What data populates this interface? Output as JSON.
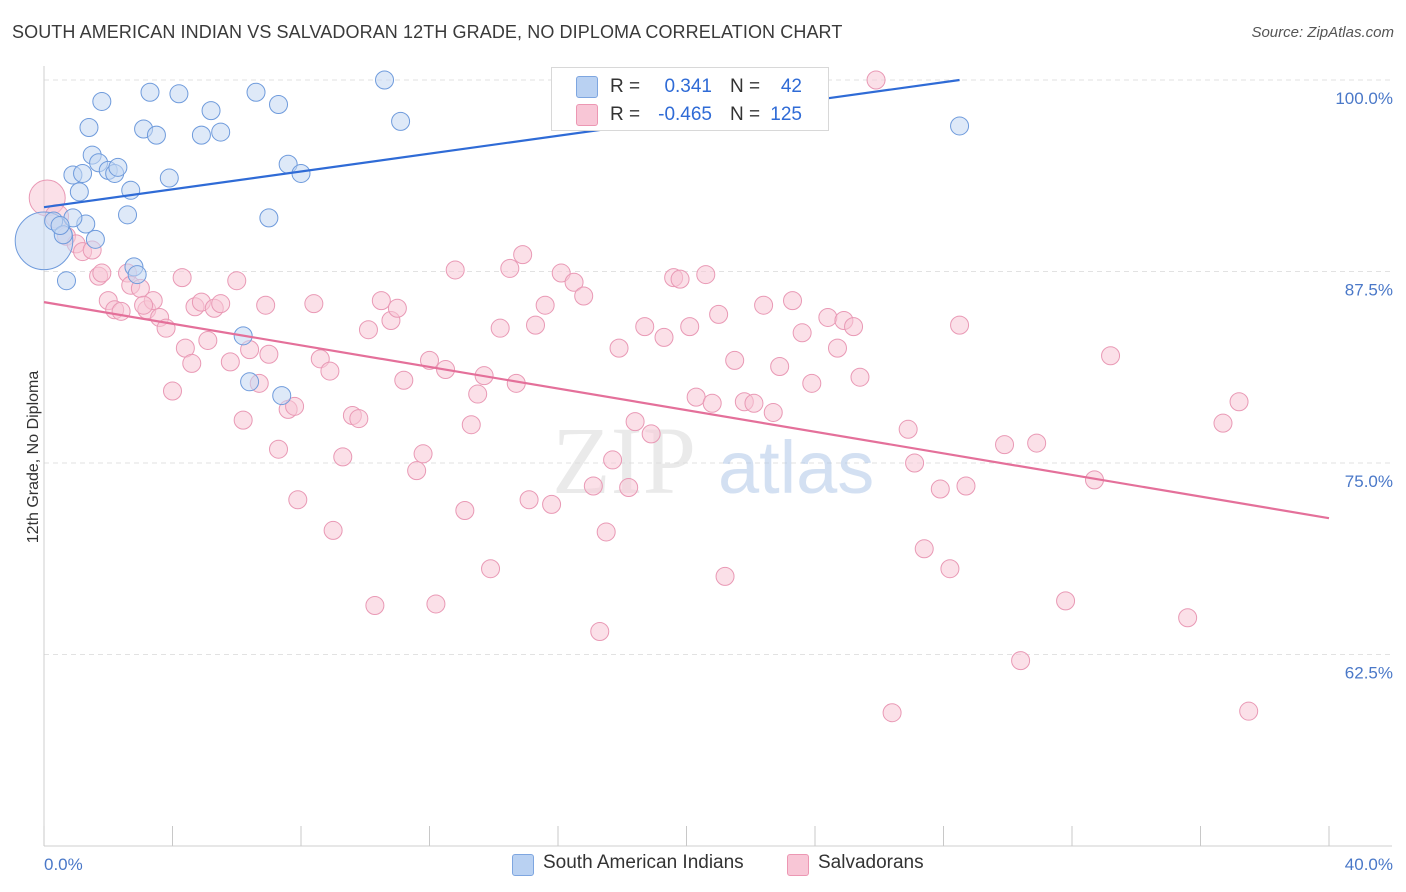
{
  "title": "SOUTH AMERICAN INDIAN VS SALVADORAN 12TH GRADE, NO DIPLOMA CORRELATION CHART",
  "source": "Source: ZipAtlas.com",
  "watermark": {
    "zip": "ZIP",
    "atlas": "atlas"
  },
  "legend": {
    "r_label": "R =",
    "n_label": "N =",
    "rows": [
      {
        "name": "South American Indians",
        "r": "0.341",
        "n": "42",
        "fill": "#b9d1f2",
        "stroke": "#7ea6e0"
      },
      {
        "name": "Salvadorans",
        "r": "-0.465",
        "n": "125",
        "fill": "#f8c6d6",
        "stroke": "#ec97b3"
      }
    ]
  },
  "chart_data": {
    "type": "scatter",
    "ylabel": "12th Grade, No Diploma",
    "xlim": [
      0,
      40
    ],
    "ylim": [
      50,
      100
    ],
    "x_tick_labels": [
      "0.0%",
      "40.0%"
    ],
    "y_ticks": [
      62.5,
      75.0,
      87.5,
      100.0
    ],
    "y_tick_labels": [
      "62.5%",
      "75.0%",
      "87.5%",
      "100.0%"
    ],
    "grid": "horizontal dashed",
    "series": [
      {
        "name": "South American Indians",
        "color": "#6b9be0",
        "trend": {
          "x": [
            0,
            28.5
          ],
          "y": [
            91.7,
            100.0
          ],
          "color": "#2f6bd6"
        },
        "points": [
          [
            0.0,
            89.5,
            3.2
          ],
          [
            0.3,
            90.8,
            1
          ],
          [
            0.6,
            89.9,
            1
          ],
          [
            0.7,
            86.9,
            1
          ],
          [
            0.9,
            93.8,
            1
          ],
          [
            1.1,
            92.7,
            1
          ],
          [
            1.2,
            93.9,
            1
          ],
          [
            1.3,
            90.6,
            1
          ],
          [
            1.4,
            96.9,
            1
          ],
          [
            1.5,
            95.1,
            1
          ],
          [
            1.7,
            94.6,
            1
          ],
          [
            2.0,
            94.1,
            1
          ],
          [
            2.2,
            93.9,
            1
          ],
          [
            2.3,
            94.3,
            1
          ],
          [
            2.7,
            92.8,
            1
          ],
          [
            2.6,
            91.2,
            1
          ],
          [
            2.8,
            87.8,
            1
          ],
          [
            3.1,
            96.8,
            1
          ],
          [
            3.3,
            99.2,
            1
          ],
          [
            3.5,
            96.4,
            1
          ],
          [
            3.9,
            93.6,
            1
          ],
          [
            4.2,
            99.1,
            1
          ],
          [
            4.9,
            96.4,
            1
          ],
          [
            5.2,
            98.0,
            1
          ],
          [
            5.5,
            96.6,
            1
          ],
          [
            6.2,
            83.3,
            1
          ],
          [
            6.4,
            80.3,
            1
          ],
          [
            6.6,
            99.2,
            1
          ],
          [
            7.0,
            91.0,
            1
          ],
          [
            7.4,
            79.4,
            1
          ],
          [
            7.6,
            94.5,
            1
          ],
          [
            8.0,
            93.9,
            1
          ],
          [
            10.6,
            100.0,
            1
          ],
          [
            11.1,
            97.3,
            1
          ],
          [
            22.5,
            100.0,
            1
          ],
          [
            28.5,
            97.0,
            1
          ],
          [
            1.8,
            98.6,
            1
          ],
          [
            0.9,
            91.0,
            1
          ],
          [
            1.6,
            89.6,
            1
          ],
          [
            2.9,
            87.3,
            1
          ],
          [
            7.3,
            98.4,
            1
          ],
          [
            0.5,
            90.5,
            1
          ]
        ]
      },
      {
        "name": "Salvadorans",
        "color": "#ec8fb0",
        "trend": {
          "x": [
            0,
            40
          ],
          "y": [
            85.5,
            71.4
          ],
          "color": "#e4709a"
        },
        "points": [
          [
            0.1,
            92.3,
            2.0
          ],
          [
            0.4,
            91.1,
            1.3
          ],
          [
            0.7,
            89.8,
            1
          ],
          [
            1.0,
            89.3,
            1
          ],
          [
            1.2,
            88.8,
            1
          ],
          [
            1.5,
            88.9,
            1
          ],
          [
            1.7,
            87.2,
            1
          ],
          [
            2.0,
            85.6,
            1
          ],
          [
            2.2,
            85.0,
            1
          ],
          [
            2.6,
            87.4,
            1
          ],
          [
            2.7,
            86.6,
            1
          ],
          [
            3.0,
            86.4,
            1
          ],
          [
            3.2,
            85.0,
            1
          ],
          [
            3.4,
            85.6,
            1
          ],
          [
            3.6,
            84.5,
            1
          ],
          [
            3.8,
            83.8,
            1
          ],
          [
            4.0,
            79.7,
            1
          ],
          [
            4.3,
            87.1,
            1
          ],
          [
            4.4,
            82.5,
            1
          ],
          [
            4.7,
            85.2,
            1
          ],
          [
            4.9,
            85.5,
            1
          ],
          [
            5.1,
            83.0,
            1
          ],
          [
            5.3,
            85.1,
            1
          ],
          [
            5.5,
            85.4,
            1
          ],
          [
            5.8,
            81.6,
            1
          ],
          [
            6.0,
            86.9,
            1
          ],
          [
            6.2,
            77.8,
            1
          ],
          [
            6.4,
            82.4,
            1
          ],
          [
            6.7,
            80.2,
            1
          ],
          [
            6.9,
            85.3,
            1
          ],
          [
            7.0,
            82.1,
            1
          ],
          [
            7.3,
            75.9,
            1
          ],
          [
            7.6,
            78.5,
            1
          ],
          [
            7.8,
            78.7,
            1
          ],
          [
            7.9,
            72.6,
            1
          ],
          [
            8.4,
            85.4,
            1
          ],
          [
            8.6,
            81.8,
            1
          ],
          [
            8.9,
            81.0,
            1
          ],
          [
            9.0,
            70.6,
            1
          ],
          [
            9.3,
            75.4,
            1
          ],
          [
            9.6,
            78.1,
            1
          ],
          [
            9.8,
            77.9,
            1
          ],
          [
            10.1,
            83.7,
            1
          ],
          [
            10.3,
            65.7,
            1
          ],
          [
            10.5,
            85.6,
            1
          ],
          [
            10.8,
            84.3,
            1
          ],
          [
            11.0,
            85.1,
            1
          ],
          [
            11.2,
            80.4,
            1
          ],
          [
            11.6,
            74.5,
            1
          ],
          [
            11.8,
            75.6,
            1
          ],
          [
            12.0,
            81.7,
            1
          ],
          [
            12.2,
            65.8,
            1
          ],
          [
            12.5,
            81.1,
            1
          ],
          [
            12.8,
            87.6,
            1
          ],
          [
            13.1,
            71.9,
            1
          ],
          [
            13.3,
            77.5,
            1
          ],
          [
            13.5,
            79.5,
            1
          ],
          [
            13.7,
            80.7,
            1
          ],
          [
            13.9,
            68.1,
            1
          ],
          [
            14.2,
            83.8,
            1
          ],
          [
            14.5,
            87.7,
            1
          ],
          [
            14.7,
            80.2,
            1
          ],
          [
            14.9,
            88.6,
            1
          ],
          [
            15.1,
            72.6,
            1
          ],
          [
            15.3,
            84.0,
            1
          ],
          [
            15.6,
            85.3,
            1
          ],
          [
            15.8,
            72.3,
            1
          ],
          [
            16.1,
            87.4,
            1
          ],
          [
            16.5,
            86.8,
            1
          ],
          [
            16.8,
            85.9,
            1
          ],
          [
            17.1,
            73.5,
            1
          ],
          [
            17.3,
            64.0,
            1
          ],
          [
            17.5,
            70.5,
            1
          ],
          [
            17.7,
            75.2,
            1
          ],
          [
            17.9,
            82.5,
            1
          ],
          [
            18.2,
            73.4,
            1
          ],
          [
            18.4,
            77.7,
            1
          ],
          [
            18.7,
            83.9,
            1
          ],
          [
            18.9,
            76.9,
            1
          ],
          [
            19.3,
            83.2,
            1
          ],
          [
            19.6,
            87.1,
            1
          ],
          [
            19.8,
            87.0,
            1
          ],
          [
            20.1,
            83.9,
            1
          ],
          [
            20.3,
            79.3,
            1
          ],
          [
            20.6,
            87.3,
            1
          ],
          [
            20.8,
            78.9,
            1
          ],
          [
            21.0,
            84.7,
            1
          ],
          [
            21.2,
            67.6,
            1
          ],
          [
            21.5,
            81.7,
            1
          ],
          [
            21.8,
            79.0,
            1
          ],
          [
            22.1,
            78.9,
            1
          ],
          [
            22.4,
            85.3,
            1
          ],
          [
            22.7,
            78.3,
            1
          ],
          [
            22.9,
            81.3,
            1
          ],
          [
            23.3,
            85.6,
            1
          ],
          [
            23.6,
            83.5,
            1
          ],
          [
            23.9,
            80.2,
            1
          ],
          [
            24.4,
            84.5,
            1
          ],
          [
            24.7,
            82.5,
            1
          ],
          [
            24.9,
            84.3,
            1
          ],
          [
            25.2,
            83.9,
            1
          ],
          [
            25.4,
            80.6,
            1
          ],
          [
            25.9,
            100.0,
            1
          ],
          [
            26.4,
            58.7,
            1
          ],
          [
            26.9,
            77.2,
            1
          ],
          [
            27.1,
            75.0,
            1
          ],
          [
            27.4,
            69.4,
            1
          ],
          [
            27.9,
            73.3,
            1
          ],
          [
            28.2,
            68.1,
            1
          ],
          [
            28.5,
            84.0,
            1
          ],
          [
            28.7,
            73.5,
            1
          ],
          [
            29.9,
            76.2,
            1
          ],
          [
            30.9,
            76.3,
            1
          ],
          [
            30.4,
            62.1,
            1
          ],
          [
            31.8,
            66.0,
            1
          ],
          [
            32.7,
            73.9,
            1
          ],
          [
            33.2,
            82.0,
            1
          ],
          [
            35.6,
            64.9,
            1
          ],
          [
            36.7,
            77.6,
            1
          ],
          [
            37.2,
            79.0,
            1
          ],
          [
            37.5,
            58.8,
            1
          ],
          [
            1.8,
            87.4,
            1
          ],
          [
            3.1,
            85.3,
            1
          ],
          [
            4.6,
            81.5,
            1
          ],
          [
            2.4,
            84.9,
            1
          ]
        ]
      }
    ]
  }
}
